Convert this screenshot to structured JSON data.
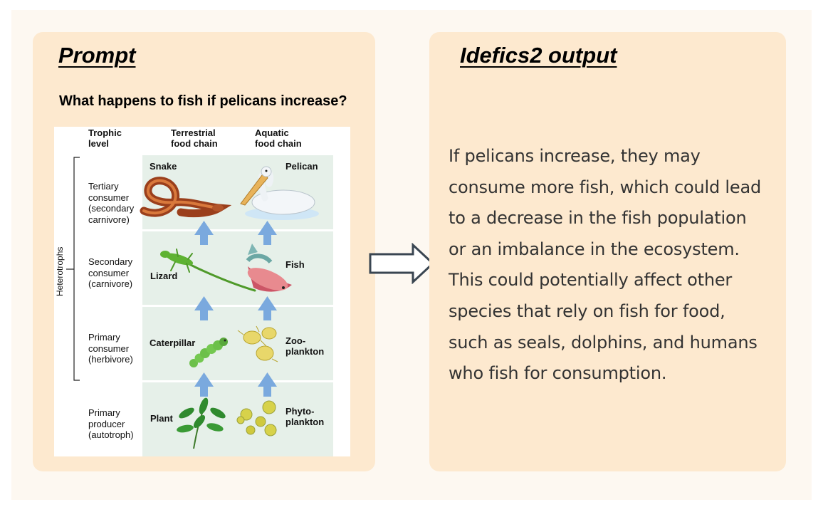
{
  "prompt_panel": {
    "title": "Prompt",
    "question": "What happens to fish if pelicans increase?"
  },
  "output_panel": {
    "title": "Idefics2 output",
    "answer_lines": [
      "If pelicans increase, they may",
      "consume more fish, which could lead",
      "to a decrease in the fish population",
      "or an imbalance in the ecosystem.",
      "This could potentially affect other",
      "species that rely on fish for food,",
      "such as seals, dolphins, and humans",
      "who fish for consumption."
    ]
  },
  "diagram": {
    "headers": {
      "trophic_1": "Trophic",
      "trophic_2": "level",
      "terrestrial_1": "Terrestrial",
      "terrestrial_2": "food chain",
      "aquatic_1": "Aquatic",
      "aquatic_2": "food chain"
    },
    "bracket_label": "Heterotrophs",
    "levels": [
      {
        "lines": [
          "Tertiary",
          "consumer",
          "(secondary",
          "carnivore)"
        ],
        "terrestrial": "Snake",
        "aquatic": "Pelican"
      },
      {
        "lines": [
          "Secondary",
          "consumer",
          "(carnivore)"
        ],
        "terrestrial": "Lizard",
        "aquatic": "Fish"
      },
      {
        "lines": [
          "Primary",
          "consumer",
          "(herbivore)"
        ],
        "terrestrial": "Caterpillar",
        "aquatic_1": "Zoo-",
        "aquatic_2": "plankton"
      },
      {
        "lines": [
          "Primary",
          "producer",
          "(autotroph)"
        ],
        "terrestrial": "Plant",
        "aquatic_1": "Phyto-",
        "aquatic_2": "plankton"
      }
    ]
  },
  "colors": {
    "panel": "#fde9cf",
    "background": "#fdf8f1",
    "row_fill": "#e6f0e9",
    "up_arrow": "#7aa9de"
  }
}
